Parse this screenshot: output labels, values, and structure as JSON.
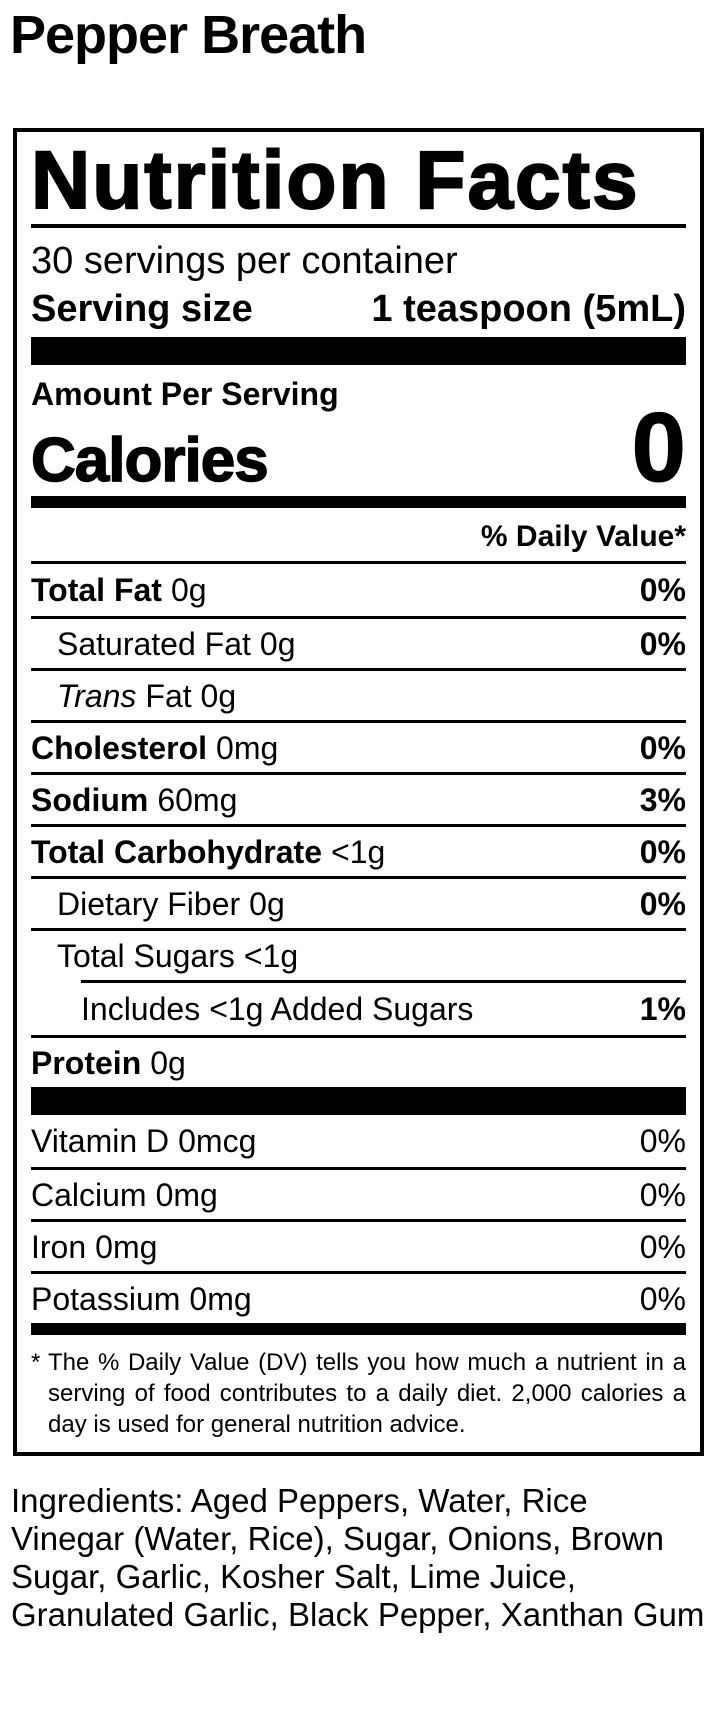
{
  "page": {
    "title": "Pepper Breath",
    "background": "#ffffff",
    "text_color": "#000000"
  },
  "nutrition_label": {
    "title": "Nutrition Facts",
    "servings_per_container": "30 servings per container",
    "serving_size": {
      "label": "Serving size",
      "value": "1 teaspoon (5mL)"
    },
    "amount_per_serving": "Amount Per Serving",
    "calories": {
      "label": "Calories",
      "value": "0"
    },
    "daily_value_header": "% Daily Value*",
    "nutrients": [
      {
        "name": "Total Fat",
        "amount": "0g",
        "percent": "0%"
      },
      {
        "name": "Saturated Fat",
        "amount": "0g",
        "percent": "0%"
      },
      {
        "name": "Trans",
        "amount": "Fat 0g",
        "percent": ""
      },
      {
        "name": "Cholesterol",
        "amount": "0mg",
        "percent": "0%"
      },
      {
        "name": "Sodium",
        "amount": "60mg",
        "percent": "3%"
      },
      {
        "name": "Total Carbohydrate",
        "amount": "<1g",
        "percent": "0%"
      },
      {
        "name": "Dietary Fiber",
        "amount": "0g",
        "percent": "0%"
      },
      {
        "name": "Total Sugars",
        "amount": "<1g",
        "percent": ""
      },
      {
        "name": "Includes",
        "amount": "<1g Added Sugars",
        "percent": "1%"
      },
      {
        "name": "Protein",
        "amount": "0g",
        "percent": ""
      }
    ],
    "vitamins": [
      {
        "name": "Vitamin D",
        "amount": "0mcg",
        "percent": "0%"
      },
      {
        "name": "Calcium",
        "amount": "0mg",
        "percent": "0%"
      },
      {
        "name": "Iron",
        "amount": "0mg",
        "percent": "0%"
      },
      {
        "name": "Potassium",
        "amount": "0mg",
        "percent": "0%"
      }
    ],
    "footnote": {
      "marker": "*",
      "text": "The % Daily Value (DV) tells you how much a nutrient in a serving of food contributes to a daily diet. 2,000 calories a day is used for general nutrition advice."
    }
  },
  "ingredients": {
    "text": "Ingredients: Aged Peppers, Water, Rice Vinegar (Water, Rice), Sugar, Onions, Brown Sugar, Garlic, Kosher Salt, Lime Juice, Granulated Garlic, Black Pepper, Xanthan Gum"
  }
}
